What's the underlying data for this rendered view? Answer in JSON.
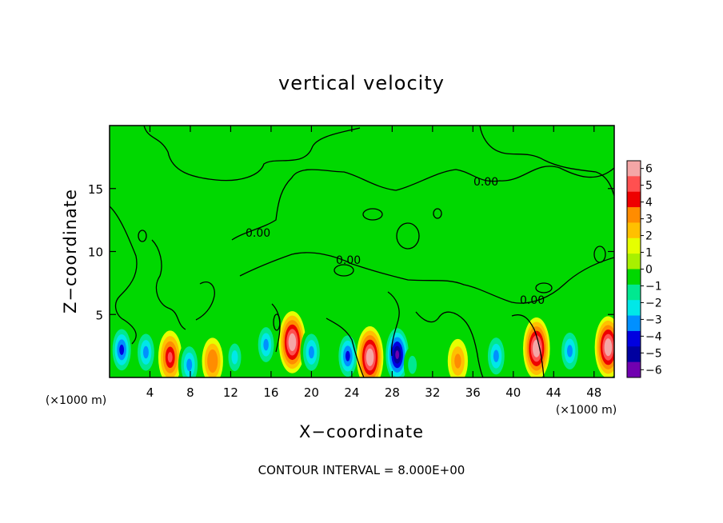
{
  "chart_data": {
    "type": "heatmap",
    "title": "vertical velocity",
    "xlabel": "X−coordinate",
    "ylabel": "Z−coordinate",
    "x_unit_label": "(×1000 m)",
    "x_unit_label_right": "(×1000 m)",
    "footer": "CONTOUR INTERVAL = 8.000E+00",
    "xlim": [
      0,
      50
    ],
    "ylim": [
      0,
      20
    ],
    "x_ticks": [
      "4",
      "8",
      "12",
      "16",
      "20",
      "24",
      "28",
      "32",
      "36",
      "40",
      "44",
      "48"
    ],
    "y_ticks": [
      "5",
      "10",
      "15"
    ],
    "x_tick_values": [
      4,
      8,
      12,
      16,
      20,
      24,
      28,
      32,
      36,
      40,
      44,
      48
    ],
    "y_tick_values": [
      5,
      10,
      15
    ],
    "contour_labels": [
      "0.00",
      "0.00",
      "0.00",
      "0.00"
    ],
    "colorbar": {
      "ticks": [
        "6",
        "5",
        "4",
        "3",
        "2",
        "1",
        "0",
        "−1",
        "−2",
        "−3",
        "−4",
        "−5",
        "−6"
      ],
      "values": [
        6,
        5,
        4,
        3,
        2,
        1,
        0,
        -1,
        -2,
        -3,
        -4,
        -5,
        -6
      ],
      "colors": [
        "#f4a6a6",
        "#ff5050",
        "#ee0000",
        "#ff8c00",
        "#ffc000",
        "#e6ff00",
        "#a8f000",
        "#00d800",
        "#00e890",
        "#00e8e8",
        "#0090ff",
        "#0000e0",
        "#0000a0",
        "#7000b0"
      ]
    },
    "features": [
      {
        "x": 1.2,
        "z": 2.2,
        "w": -4.5
      },
      {
        "x": 3.6,
        "z": 2.0,
        "w": -4.0
      },
      {
        "x": 6.0,
        "z": 1.6,
        "w": 4.8
      },
      {
        "x": 7.9,
        "z": 1.0,
        "w": -4.0
      },
      {
        "x": 10.2,
        "z": 1.3,
        "w": 3.5
      },
      {
        "x": 12.4,
        "z": 1.6,
        "w": -2.5
      },
      {
        "x": 15.5,
        "z": 2.6,
        "w": -3.5
      },
      {
        "x": 18.1,
        "z": 2.8,
        "w": 6.5
      },
      {
        "x": 20.0,
        "z": 2.0,
        "w": -4.0
      },
      {
        "x": 23.6,
        "z": 1.7,
        "w": -4.5
      },
      {
        "x": 25.8,
        "z": 1.6,
        "w": 6.5
      },
      {
        "x": 28.5,
        "z": 1.8,
        "w": -6.5
      },
      {
        "x": 30.0,
        "z": 1.0,
        "w": -1.5
      },
      {
        "x": 34.5,
        "z": 1.3,
        "w": 3.0
      },
      {
        "x": 38.3,
        "z": 1.7,
        "w": -4.0
      },
      {
        "x": 42.3,
        "z": 2.3,
        "w": 6.5
      },
      {
        "x": 45.6,
        "z": 2.1,
        "w": -4.0
      },
      {
        "x": 49.4,
        "z": 2.4,
        "w": 6.5
      }
    ]
  }
}
